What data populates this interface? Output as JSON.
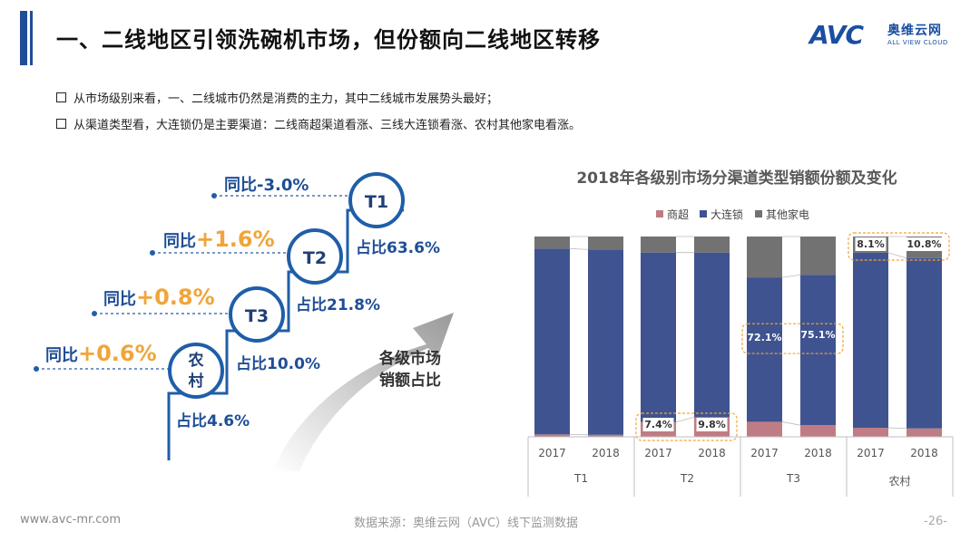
{
  "header": {
    "title": "一、二线地区引领洗碗机市场，但份额向二线地区转移",
    "logo_text": "AVC",
    "logo_cn": "奥维云网",
    "logo_en": "ALL VIEW CLOUD"
  },
  "bullets": [
    "从市场级别来看，一、二线城市仍然是消费的主力，其中二线城市发展势头最好；",
    "从渠道类型看，大连锁仍是主要渠道：二线商超渠道看涨、三线大连锁看涨、农村其他家电看涨。"
  ],
  "staircase": {
    "tiers": [
      {
        "name": "T1",
        "yoy_label": "同比",
        "yoy_value": "-3.0%",
        "share": "占比63.6%"
      },
      {
        "name": "T2",
        "yoy_label": "同比",
        "yoy_value": "+1.6%",
        "share": "占比21.8%"
      },
      {
        "name": "T3",
        "yoy_label": "同比",
        "yoy_value": "+0.8%",
        "share": "占比10.0%"
      },
      {
        "name_line1": "农",
        "name_line2": "村",
        "yoy_label": "同比",
        "yoy_value": "+0.6%",
        "share": "占比4.6%"
      }
    ],
    "arrow_text_line1": "各级市场",
    "arrow_text_line2": "销额占比"
  },
  "chart_data": {
    "type": "bar",
    "stacked": true,
    "percent": true,
    "title": "2018年各级别市场分渠道类型销额份额及变化",
    "legend": [
      "商超",
      "大连锁",
      "其他家电"
    ],
    "colors": {
      "商超": "#c07c84",
      "大连锁": "#3f5390",
      "其他家电": "#727272"
    },
    "groups": [
      "T1",
      "T2",
      "T3",
      "农村"
    ],
    "years": [
      "2017",
      "2018"
    ],
    "categories": [
      "T1 2017",
      "T1 2018",
      "T2 2017",
      "T2 2018",
      "T3 2017",
      "T3 2018",
      "农村 2017",
      "农村 2018"
    ],
    "series": [
      {
        "name": "商超",
        "values": [
          1.2,
          1.0,
          7.4,
          9.8,
          7.5,
          5.8,
          4.5,
          4.2
        ]
      },
      {
        "name": "大连锁",
        "values": [
          92.8,
          92.5,
          84.6,
          82.2,
          72.1,
          75.1,
          87.4,
          85.0
        ]
      },
      {
        "name": "其他家电",
        "values": [
          6.0,
          6.5,
          8.0,
          8.0,
          20.4,
          19.1,
          8.1,
          10.8
        ]
      }
    ],
    "data_labels": [
      {
        "group": "T2",
        "year": "2017",
        "series": "商超",
        "text": "7.4%"
      },
      {
        "group": "T2",
        "year": "2018",
        "series": "商超",
        "text": "9.8%"
      },
      {
        "group": "T3",
        "year": "2017",
        "series": "大连锁",
        "text": "72.1%"
      },
      {
        "group": "T3",
        "year": "2018",
        "series": "大连锁",
        "text": "75.1%"
      },
      {
        "group": "农村",
        "year": "2017",
        "series": "其他家电",
        "text": "8.1%"
      },
      {
        "group": "农村",
        "year": "2018",
        "series": "其他家电",
        "text": "10.8%"
      }
    ],
    "ylim": [
      0,
      100
    ],
    "grid": false
  },
  "footer": {
    "website": "www.avc-mr.com",
    "source": "数据来源：奥维云网（AVC）线下监测数据",
    "page": "-26-"
  }
}
